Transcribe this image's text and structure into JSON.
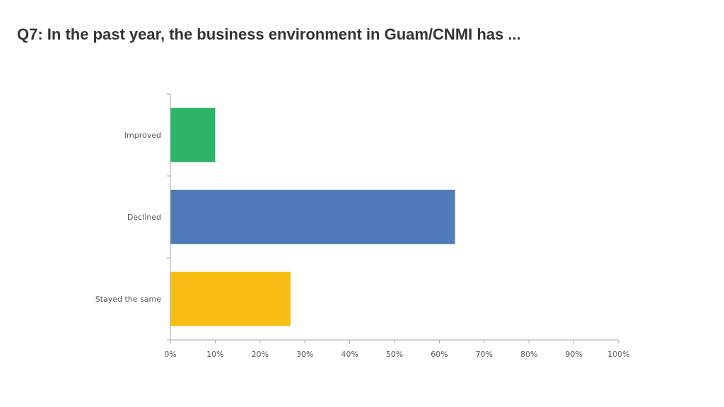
{
  "slide": {
    "title": "Q7: In the past year, the business environment in Guam/CNMI has ..."
  },
  "chart_data": {
    "type": "bar",
    "orientation": "horizontal",
    "title": "",
    "xlabel": "",
    "ylabel": "",
    "categories": [
      "Improved",
      "Declined",
      "Stayed the same"
    ],
    "values": [
      0.1,
      0.635,
      0.268
    ],
    "colors": [
      "#2DB56B",
      "#4F7CB8",
      "#F7BD12"
    ],
    "xlim": [
      0,
      1
    ],
    "xticks": [
      0,
      0.1,
      0.2,
      0.3,
      0.4,
      0.5,
      0.6,
      0.7,
      0.8,
      0.9,
      1.0
    ],
    "xtick_labels": [
      "0%",
      "10%",
      "20%",
      "30%",
      "40%",
      "50%",
      "60%",
      "70%",
      "80%",
      "90%",
      "100%"
    ],
    "grid": false,
    "legend": "none",
    "axis_color": "#A6A6A6"
  }
}
